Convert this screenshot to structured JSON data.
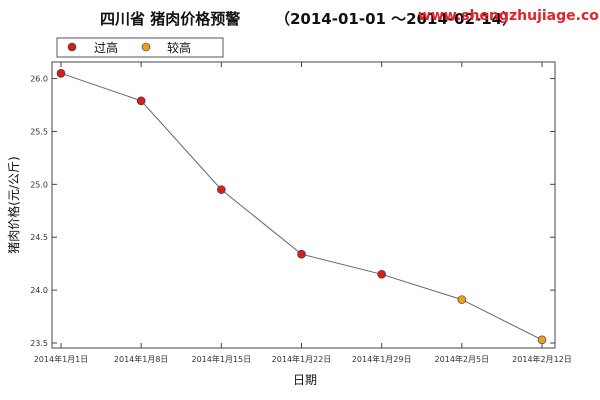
{
  "header": {
    "title_main": "四川省 猪肉价格预警",
    "title_range": "（2014-01-01 ～2014-02-14）",
    "watermark": "www.shengzhujiage.com"
  },
  "legend": {
    "items": [
      {
        "label": "过高",
        "color": "#d41f1f"
      },
      {
        "label": "较高",
        "color": "#e8a020"
      }
    ]
  },
  "colors": {
    "line": "#666666",
    "axis": "#444444",
    "grid": "#ffffff"
  },
  "chart_data": {
    "type": "line",
    "xlabel": "日期",
    "ylabel": "猪肉价格(元/公斤)",
    "ylim": [
      23.5,
      26.1
    ],
    "yticks": [
      23.5,
      24.0,
      24.5,
      25.0,
      25.5,
      26.0
    ],
    "xticks": [
      {
        "date": "2014-01-01",
        "label": "2014年1月1日"
      },
      {
        "date": "2014-01-08",
        "label": "2014年1月8日"
      },
      {
        "date": "2014-01-15",
        "label": "2014年1月15日"
      },
      {
        "date": "2014-01-22",
        "label": "2014年1月22日"
      },
      {
        "date": "2014-01-29",
        "label": "2014年1月29日"
      },
      {
        "date": "2014-02-05",
        "label": "2014年2月5日"
      },
      {
        "date": "2014-02-12",
        "label": "2014年2月12日"
      }
    ],
    "xlim": [
      "2014-01-01",
      "2014-02-12"
    ],
    "points": [
      {
        "x": "2014-01-01",
        "y": 26.05,
        "level": "过高"
      },
      {
        "x": "2014-01-08",
        "y": 25.79,
        "level": "过高"
      },
      {
        "x": "2014-01-15",
        "y": 24.95,
        "level": "过高"
      },
      {
        "x": "2014-01-22",
        "y": 24.34,
        "level": "过高"
      },
      {
        "x": "2014-01-29",
        "y": 24.15,
        "level": "过高"
      },
      {
        "x": "2014-02-05",
        "y": 23.91,
        "level": "较高"
      },
      {
        "x": "2014-02-12",
        "y": 23.53,
        "level": "较高"
      }
    ]
  }
}
